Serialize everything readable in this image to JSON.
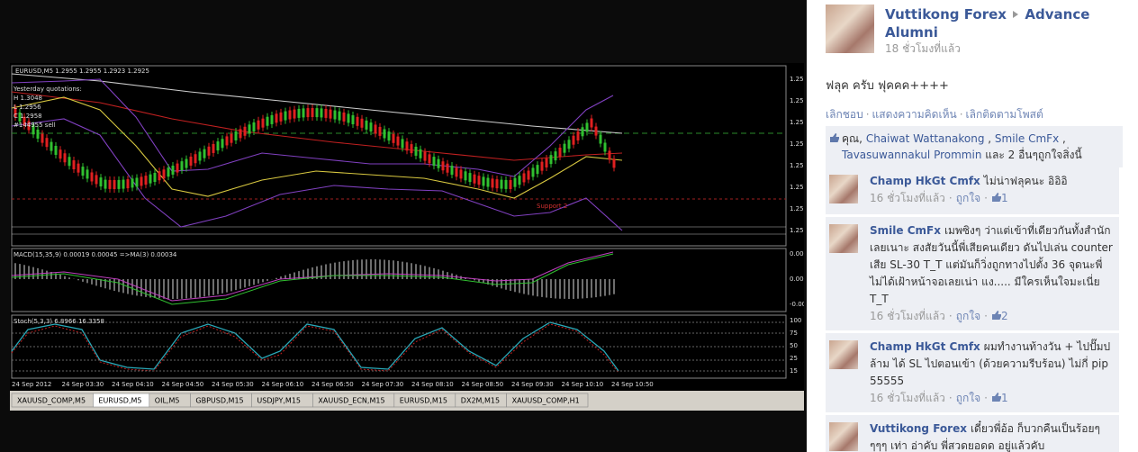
{
  "chart_image": {
    "symbol_line": "EURUSD,M5  1.2955 1.2955 1.2923 1.2925",
    "quotations": [
      "Yesterday quotations:",
      "H 1.3048",
      "L 1.2956",
      "C 1.2958",
      "#144955 sell"
    ],
    "support_label": "Support 2",
    "price_axis": [
      "1.25",
      "1.25",
      "1.25",
      "1.25",
      "1.25",
      "1.25",
      "1.25",
      "1.25"
    ],
    "macd_label": "MACD(15,35,9) 0.00019 0.00045 =>MA(3) 0.00034",
    "macd_axis": [
      "0.000",
      "0.000",
      "-0.00"
    ],
    "stoch_label": "Stoch(5,3,3) 6.8966 16.3358",
    "stoch_axis": [
      "100",
      "75",
      "50",
      "25",
      "15"
    ],
    "time_labels": [
      "24 Sep 2012",
      "24 Sep 03:30",
      "24 Sep 04:10",
      "24 Sep 04:50",
      "24 Sep 05:30",
      "24 Sep 06:10",
      "24 Sep 06:50",
      "24 Sep 07:30",
      "24 Sep 08:10",
      "24 Sep 08:50",
      "24 Sep 09:30",
      "24 Sep 10:10",
      "24 Sep 10:50"
    ],
    "tabs": [
      "XAUUSD_COMP,M5",
      "EURUSD,M5",
      "OIL,M5",
      "GBPUSD,M15",
      "USDJPY,M15",
      "XAUUSD_ECN,M15",
      "EURUSD,M15",
      "DX2M,M15",
      "XAUUSD_COMP,H1"
    ]
  },
  "post": {
    "author": "Vuttikong Forex",
    "group": "Advance Alumni",
    "time": "18 ชั่วโมงที่แล้ว",
    "message": "ฟลุค ครับ ฟุคคค++++",
    "actions": [
      "เลิกชอบ",
      "แสดงความคิดเห็น",
      "เลิกติดตามโพสต์"
    ],
    "separator": "·",
    "likes": [
      "คุณ,",
      "Chaiwat Wattanakong",
      ",",
      "Smile CmFx",
      ",",
      "Tavasuwannakul Prommin",
      "และ 2 อื่นๆถูกใจสิ่งนี้"
    ]
  },
  "comments": [
    {
      "author": "Champ HkGt Cmfx",
      "text": "ไม่น่าฟลุคนะ อิอิอิ",
      "time": "16 ชั่วโมงที่แล้ว",
      "like": "ถูกใจ",
      "likes": 1
    },
    {
      "author": "Smile CmFx",
      "text": "เมพซิงๆ ว่าแต่เข้าที่เดียวกันทั้งสำนักเลยเนาะ สงสัยวันนี้พี่เสียคนเดียว ดันไปเล่น counter เสีย SL-30 T_T แต่มันก็วิ่งถูกทางไปตั้ง 36 จุดนะพี่ไม่ได้เฝ้าหน้าจอเลยเน่า แง..... มีใครเห็นใจมะเนี่ย T_T",
      "time": "16 ชั่วโมงที่แล้ว",
      "like": "ถูกใจ",
      "likes": 2
    },
    {
      "author": "Champ HkGt Cmfx",
      "text": "ผมทำงานท้างวัน + ไปปั๊มปล้าม ได้ SL ไปตอนเข้า (ด้วยความรีบร้อน) ไม่กี่ pip 55555",
      "time": "16 ชั่วโมงที่แล้ว",
      "like": "ถูกใจ",
      "likes": 1
    },
    {
      "author": "Vuttikong Forex",
      "text": "เดี๋ยวพี่อ้อ ก็บวกคืนเป็นร้อยๆๆๆๆ เท่า อ่าคับ พี่สวดยอดด อยู่แล้วคับ"
    }
  ]
}
